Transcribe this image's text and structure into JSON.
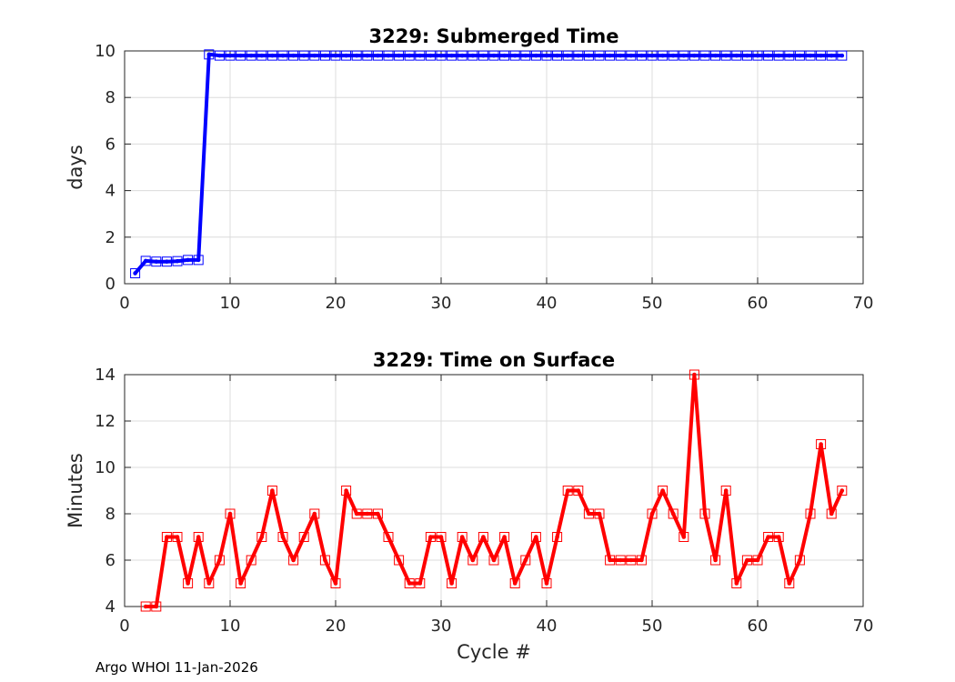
{
  "chart_data": [
    {
      "type": "line",
      "title": "3229: Submerged Time",
      "xlabel": "",
      "ylabel": "days",
      "xlim": [
        0,
        70
      ],
      "ylim": [
        0,
        10
      ],
      "xticks": [
        "0",
        "10",
        "20",
        "30",
        "40",
        "50",
        "60",
        "70"
      ],
      "yticks": [
        "0",
        "2",
        "4",
        "6",
        "8",
        "10"
      ],
      "color": "#0000ff",
      "grid": true,
      "series": [
        {
          "name": "Submerged Time",
          "x": [
            1,
            2,
            3,
            4,
            5,
            6,
            7,
            8,
            9,
            10,
            11,
            12,
            13,
            14,
            15,
            16,
            17,
            18,
            19,
            20,
            21,
            22,
            23,
            24,
            25,
            26,
            27,
            28,
            29,
            30,
            31,
            32,
            33,
            34,
            35,
            36,
            37,
            38,
            39,
            40,
            41,
            42,
            43,
            44,
            45,
            46,
            47,
            48,
            49,
            50,
            51,
            52,
            53,
            54,
            55,
            56,
            57,
            58,
            59,
            60,
            61,
            62,
            63,
            64,
            65,
            66,
            67,
            68
          ],
          "values": [
            0.45,
            0.98,
            0.95,
            0.95,
            0.97,
            1.02,
            1.02,
            9.85,
            9.8,
            9.8,
            9.8,
            9.8,
            9.8,
            9.8,
            9.8,
            9.8,
            9.8,
            9.8,
            9.8,
            9.8,
            9.8,
            9.8,
            9.8,
            9.8,
            9.8,
            9.8,
            9.8,
            9.8,
            9.8,
            9.8,
            9.8,
            9.8,
            9.8,
            9.8,
            9.8,
            9.8,
            9.8,
            9.8,
            9.8,
            9.8,
            9.8,
            9.8,
            9.8,
            9.8,
            9.8,
            9.8,
            9.8,
            9.8,
            9.8,
            9.8,
            9.8,
            9.8,
            9.8,
            9.8,
            9.8,
            9.8,
            9.8,
            9.8,
            9.8,
            9.8,
            9.8,
            9.8,
            9.8,
            9.8,
            9.8,
            9.8,
            9.8,
            9.8
          ]
        }
      ]
    },
    {
      "type": "line",
      "title": "3229: Time on Surface",
      "xlabel": "Cycle #",
      "ylabel": "Minutes",
      "xlim": [
        0,
        70
      ],
      "ylim": [
        4,
        14
      ],
      "xticks": [
        "0",
        "10",
        "20",
        "30",
        "40",
        "50",
        "60",
        "70"
      ],
      "yticks": [
        "4",
        "6",
        "8",
        "10",
        "12",
        "14"
      ],
      "color": "#ff0000",
      "grid": true,
      "series": [
        {
          "name": "Time on Surface",
          "x": [
            2,
            3,
            4,
            5,
            6,
            7,
            8,
            9,
            10,
            11,
            12,
            13,
            14,
            15,
            16,
            17,
            18,
            19,
            20,
            21,
            22,
            23,
            24,
            25,
            26,
            27,
            28,
            29,
            30,
            31,
            32,
            33,
            34,
            35,
            36,
            37,
            38,
            39,
            40,
            41,
            42,
            43,
            44,
            45,
            46,
            47,
            48,
            49,
            50,
            51,
            52,
            53,
            54,
            55,
            56,
            57,
            58,
            59,
            60,
            61,
            62,
            63,
            64,
            65,
            66,
            67,
            68
          ],
          "values": [
            4,
            4,
            7,
            7,
            5,
            7,
            5,
            6,
            8,
            5,
            6,
            7,
            9,
            7,
            6,
            7,
            8,
            6,
            5,
            9,
            8,
            8,
            8,
            7,
            6,
            5,
            5,
            7,
            7,
            5,
            7,
            6,
            7,
            6,
            7,
            5,
            6,
            7,
            5,
            7,
            9,
            9,
            8,
            8,
            6,
            6,
            6,
            6,
            8,
            9,
            8,
            7,
            14,
            8,
            6,
            9,
            5,
            6,
            6,
            7,
            7,
            5,
            6,
            8,
            11,
            8,
            9
          ]
        }
      ]
    }
  ],
  "footer": "Argo WHOI 11-Jan-2026"
}
